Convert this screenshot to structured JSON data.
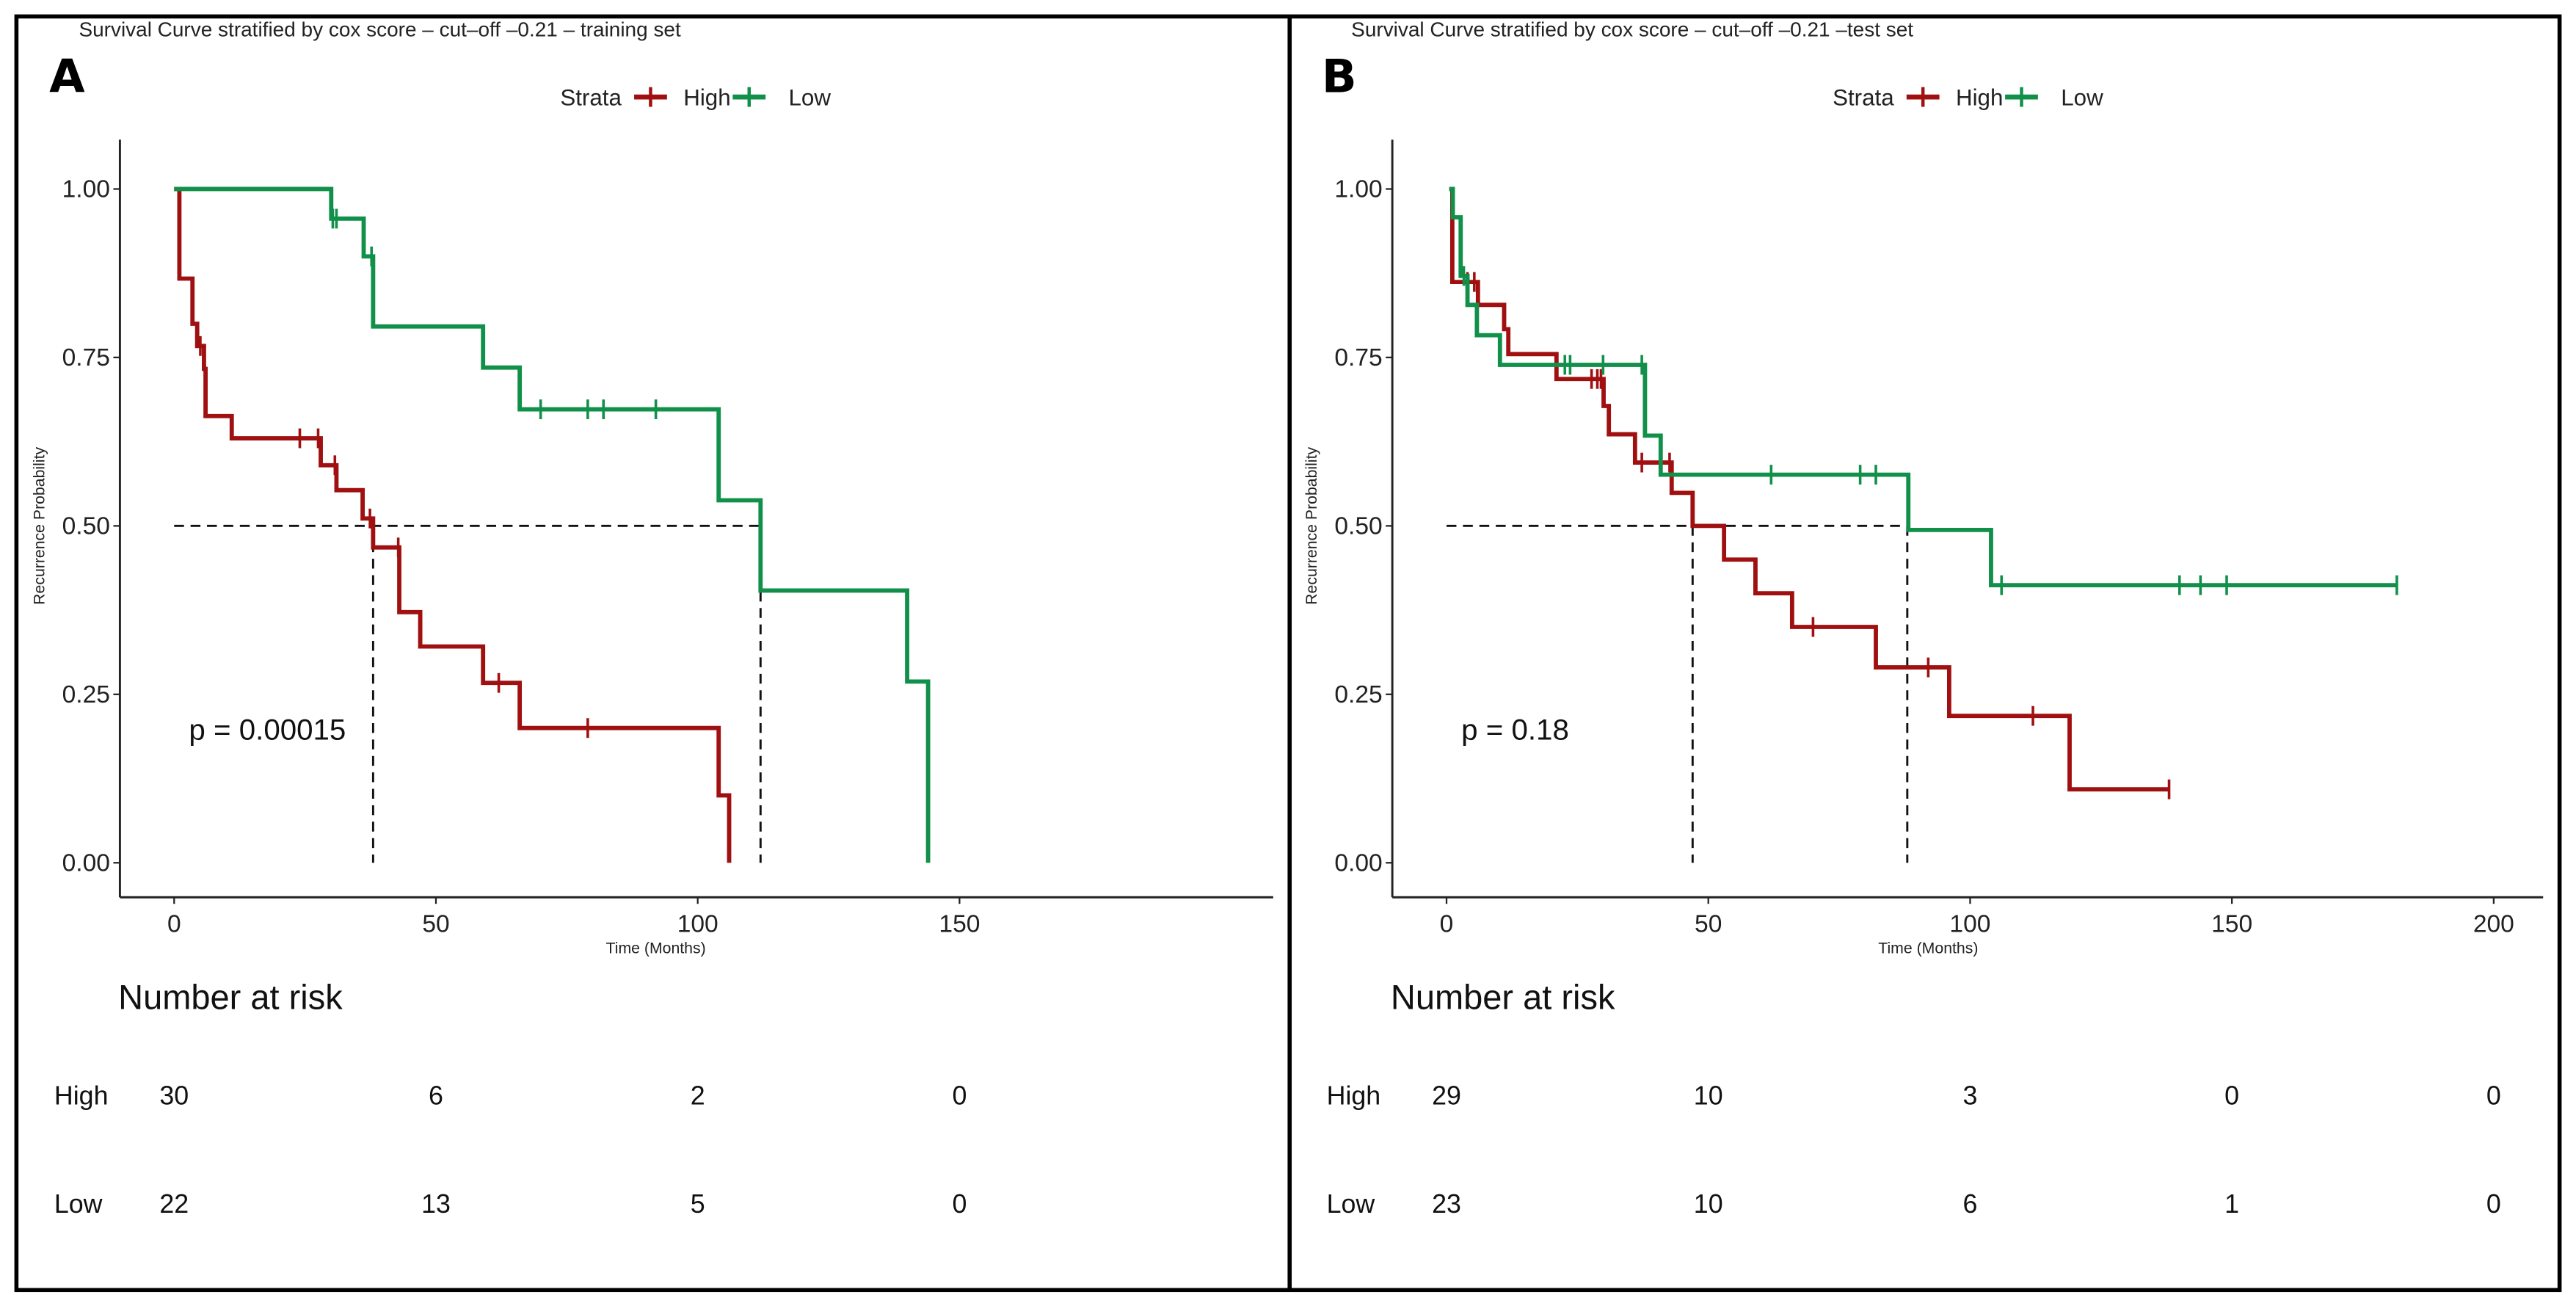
{
  "colors": {
    "high": "#A01010",
    "low": "#11904A",
    "axis": "#222222",
    "frame": "#000000"
  },
  "chart_data": [
    {
      "type": "line",
      "panel_label": "A",
      "title": "Survival Curve stratified by cox score – cut–off –0.21 – training set",
      "legend": {
        "title": "Strata",
        "entries": [
          "High",
          "Low"
        ],
        "placement": "top"
      },
      "xlabel": "Time (Months)",
      "ylabel": "Recurrence Probability",
      "xlim": [
        -10,
        210
      ],
      "ylim": [
        0,
        1
      ],
      "x_ticks": [
        "0",
        "50",
        "100",
        "150"
      ],
      "x_tick_values": [
        0,
        50,
        100,
        150
      ],
      "y_ticks": [
        "0.00",
        "0.25",
        "0.50",
        "0.75",
        "1.00"
      ],
      "y_tick_values": [
        0,
        0.25,
        0.5,
        0.75,
        1
      ],
      "p_value": "p = 0.00015",
      "median_line": {
        "y": 0.5,
        "medians": [
          38,
          112
        ]
      },
      "series": [
        {
          "name": "High",
          "steps": [
            [
              0,
              1
            ],
            [
              1,
              0.867
            ],
            [
              3.5,
              0.8
            ],
            [
              4.4,
              0.767
            ],
            [
              5.7,
              0.733
            ],
            [
              6,
              0.663
            ],
            [
              11,
              0.63
            ],
            [
              28,
              0.59
            ],
            [
              31,
              0.553
            ],
            [
              36,
              0.511
            ],
            [
              38,
              0.468
            ],
            [
              43,
              0.372
            ],
            [
              47,
              0.321
            ],
            [
              59,
              0.267
            ],
            [
              66,
              0.2
            ],
            [
              104,
              0.1
            ],
            [
              106,
              0
            ]
          ],
          "end": 106,
          "censored": [
            5,
            24,
            27.5,
            30.7,
            37.4,
            42.8,
            62,
            79
          ]
        },
        {
          "name": "Low",
          "steps": [
            [
              0,
              1
            ],
            [
              30,
              0.956
            ],
            [
              36.2,
              0.9
            ],
            [
              38,
              0.796
            ],
            [
              59,
              0.735
            ],
            [
              66,
              0.673
            ],
            [
              104,
              0.538
            ],
            [
              112,
              0.404
            ],
            [
              140,
              0.269
            ],
            [
              144,
              0
            ]
          ],
          "end": 144,
          "censored": [
            30.3,
            31,
            37.7,
            70,
            79,
            82,
            92
          ]
        }
      ],
      "risk_table": {
        "title": "Number at risk",
        "times": [
          0,
          50,
          100,
          150
        ],
        "rows": [
          {
            "label": "High",
            "values": [
              "30",
              "6",
              "2",
              "0"
            ]
          },
          {
            "label": "Low",
            "values": [
              "22",
              "13",
              "5",
              "0"
            ]
          }
        ]
      }
    },
    {
      "type": "line",
      "panel_label": "B",
      "title": "Survival Curve stratified by cox score – cut–off –0.21 –test set",
      "legend": {
        "title": "Strata",
        "entries": [
          "High",
          "Low"
        ],
        "placement": "top"
      },
      "xlabel": "Time (Months)",
      "ylabel": "Recurrence Probability",
      "xlim": [
        -10,
        210
      ],
      "ylim": [
        0,
        1
      ],
      "x_ticks": [
        "0",
        "50",
        "100",
        "150",
        "200"
      ],
      "x_tick_values": [
        0,
        50,
        100,
        150,
        200
      ],
      "y_ticks": [
        "0.00",
        "0.25",
        "0.50",
        "0.75",
        "1.00"
      ],
      "y_tick_values": [
        0,
        0.25,
        0.5,
        0.75,
        1
      ],
      "p_value": "p = 0.18",
      "median_line": {
        "y": 0.5,
        "medians": [
          47,
          88
        ]
      },
      "series": [
        {
          "name": "High",
          "steps": [
            [
              0.6,
              1
            ],
            [
              1.1,
              0.862
            ],
            [
              6,
              0.828
            ],
            [
              11,
              0.792
            ],
            [
              11.8,
              0.755
            ],
            [
              21,
              0.718
            ],
            [
              30,
              0.678
            ],
            [
              31,
              0.636
            ],
            [
              36,
              0.594
            ],
            [
              43,
              0.549
            ],
            [
              47,
              0.5
            ],
            [
              53,
              0.45
            ],
            [
              59,
              0.4
            ],
            [
              66,
              0.35
            ],
            [
              82,
              0.29
            ],
            [
              96,
              0.218
            ],
            [
              119,
              0.109
            ]
          ],
          "end": 138,
          "censored": [
            4,
            5.3,
            27.7,
            28.8,
            29.5,
            37.3,
            42.6,
            70,
            92,
            112,
            138
          ]
        },
        {
          "name": "Low",
          "steps": [
            [
              0.5,
              1
            ],
            [
              1.2,
              0.958
            ],
            [
              2.7,
              0.871
            ],
            [
              4,
              0.828
            ],
            [
              5.8,
              0.783
            ],
            [
              10.2,
              0.739
            ],
            [
              37.9,
              0.634
            ],
            [
              40.9,
              0.576
            ],
            [
              88.2,
              0.494
            ],
            [
              104,
              0.412
            ]
          ],
          "end": 181.5,
          "censored": [
            3.3,
            22.6,
            23.6,
            29.9,
            37.3,
            62,
            79,
            82,
            106,
            140,
            144,
            149,
            181.5
          ]
        }
      ],
      "risk_table": {
        "title": "Number at risk",
        "times": [
          0,
          50,
          100,
          150,
          200
        ],
        "rows": [
          {
            "label": "High",
            "values": [
              "29",
              "10",
              "3",
              "0",
              "0"
            ]
          },
          {
            "label": "Low",
            "values": [
              "23",
              "10",
              "6",
              "1",
              "0"
            ]
          }
        ]
      }
    }
  ]
}
